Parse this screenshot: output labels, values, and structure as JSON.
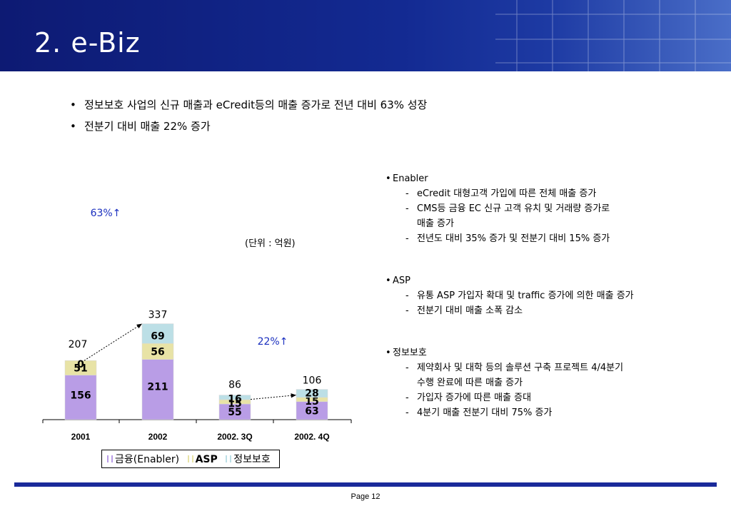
{
  "header": {
    "title": "2. e-Biz"
  },
  "bullets": [
    "정보보호 사업의 신규 매출과 eCredit등의 매출 증가로  전년 대비 63% 성장",
    "전분기 대비 매출 22% 증가"
  ],
  "unit_label": "(단위 : 억원)",
  "chart_data": {
    "type": "bar",
    "stacked": true,
    "categories": [
      "2001",
      "2002",
      "2002. 3Q",
      "2002. 4Q"
    ],
    "series": [
      {
        "name": "금융(Enabler)",
        "values": [
          156,
          211,
          55,
          63
        ],
        "labels": [
          "156",
          "211",
          "55",
          "63"
        ],
        "color": "#b99de6"
      },
      {
        "name": "ASP",
        "values": [
          51,
          56,
          15,
          15
        ],
        "labels": [
          "51",
          "56",
          "15",
          "15"
        ],
        "color": "#e8e3a6"
      },
      {
        "name": "정보보호",
        "values": [
          0,
          69,
          16,
          28
        ],
        "labels": [
          "0",
          "69",
          "16",
          "28"
        ],
        "color": "#bcdfe6"
      }
    ],
    "totals": [
      "207",
      "337",
      "86",
      "106"
    ],
    "growth_labels": [
      "63%↑",
      "22%↑"
    ],
    "legend_position": "bottom",
    "grid": false
  },
  "notes": [
    {
      "head": "Enabler",
      "items": [
        [
          "eCredit 대형고객 가입에 따른 전체 매출 증가"
        ],
        [
          "CMS등 금융 EC 신규 고객  유치 및 거래량 증가로",
          "매출 증가"
        ],
        [
          "전년도 대비 35% 증가 및 전분기 대비 15% 증가"
        ]
      ]
    },
    {
      "head": "ASP",
      "items": [
        [
          "유통 ASP 가입자 확대 및 traffic 증가에 의한 매출 증가"
        ],
        [
          "전분기 대비 매출 소폭 감소"
        ]
      ]
    },
    {
      "head": "정보보호",
      "items": [
        [
          "제약회사 및 대학 등의 솔루션 구축 프로젝트 4/4분기",
          "수행 완료에 따른 매출 증가"
        ],
        [
          "가입자 증가에 따른 매출 증대"
        ],
        [
          "4분기 매출 전분기 대비 75% 증가"
        ]
      ]
    }
  ],
  "footer": {
    "page": "Page 12"
  }
}
